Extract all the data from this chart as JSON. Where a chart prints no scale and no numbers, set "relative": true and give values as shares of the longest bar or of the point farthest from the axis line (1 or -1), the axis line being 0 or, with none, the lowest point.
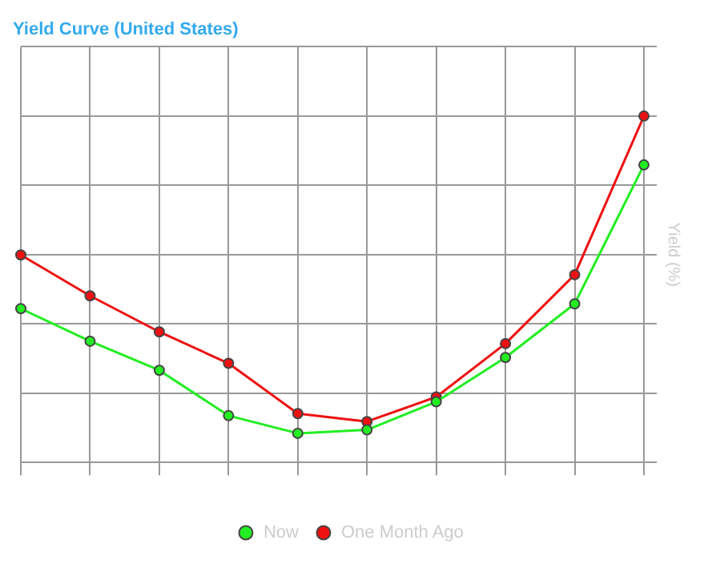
{
  "chart_data": {
    "type": "line",
    "title": "Yield Curve (United States)",
    "ylabel": "Yield (%)",
    "relative": true,
    "categories": [
      null,
      null,
      null,
      null,
      null,
      null,
      null,
      null,
      null,
      null
    ],
    "series": [
      {
        "name": "Now",
        "color": "#22ee22",
        "values": [
          0.444,
          0.35,
          0.266,
          0.135,
          0.084,
          0.094,
          0.175,
          0.303,
          0.458,
          0.859
        ]
      },
      {
        "name": "One Month Ago",
        "color": "#ee1111",
        "values": [
          0.599,
          0.481,
          0.377,
          0.286,
          0.141,
          0.118,
          0.189,
          0.343,
          0.542,
          1
        ]
      }
    ],
    "grid": true,
    "legend": "bottom",
    "marker": "circle",
    "line_style": "solid"
  }
}
